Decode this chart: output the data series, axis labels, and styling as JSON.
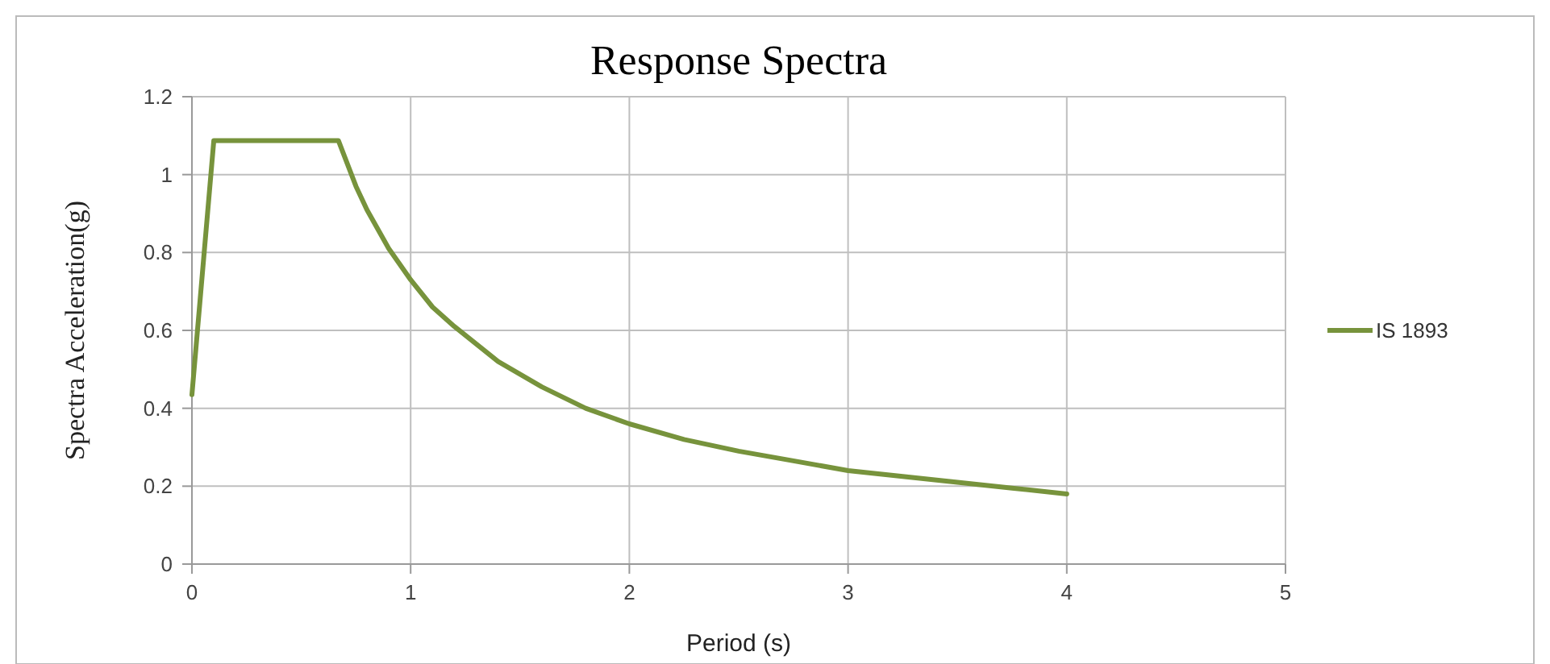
{
  "chart_data": {
    "type": "line",
    "title": "Response Spectra",
    "xlabel": "Period (s)",
    "ylabel": "Spectra Acceleration(g)",
    "x": [
      0,
      0.1,
      0.67,
      0.75,
      0.8,
      0.9,
      1,
      1.1,
      1.2,
      1.4,
      1.6,
      1.8,
      2,
      2.25,
      2.5,
      2.75,
      3,
      3.25,
      3.5,
      3.75,
      4
    ],
    "series": [
      {
        "name": "IS 1893",
        "color": "#77933c",
        "values": [
          0.435,
          1.087,
          1.087,
          0.97,
          0.91,
          0.81,
          0.73,
          0.66,
          0.61,
          0.52,
          0.455,
          0.4,
          0.36,
          0.32,
          0.29,
          0.265,
          0.24,
          0.225,
          0.21,
          0.195,
          0.18
        ]
      }
    ],
    "xlim": [
      0,
      5
    ],
    "xticks": [
      0,
      1,
      2,
      3,
      4,
      5
    ],
    "ylim": [
      0,
      1.2
    ],
    "yticks": [
      0,
      0.2,
      0.4,
      0.6,
      0.8,
      1,
      1.2
    ],
    "grid": true,
    "legend": "right",
    "marker": "none",
    "line_style": "solid"
  }
}
